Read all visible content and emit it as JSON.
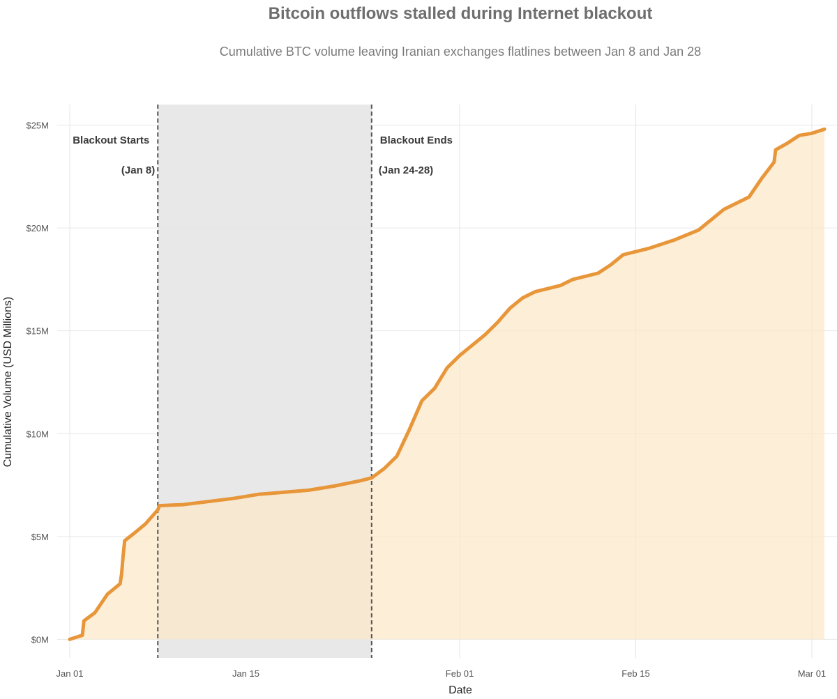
{
  "chart_data": {
    "type": "area",
    "title": "Bitcoin outflows stalled during Internet blackout",
    "subtitle": "Cumulative BTC volume leaving Iranian exchanges flatlines between Jan 8 and Jan 28",
    "xlabel": "Date",
    "ylabel": "Cumulative Volume (USD Millions)",
    "x_range": [
      "2025-12-31",
      "2026-03-03"
    ],
    "ylim": [
      -0.9,
      26
    ],
    "x_ticks": [
      {
        "date": "2026-01-01",
        "label": "Jan 01"
      },
      {
        "date": "2026-01-15",
        "label": "Jan 15"
      },
      {
        "date": "2026-02-01",
        "label": "Feb 01"
      },
      {
        "date": "2026-02-15",
        "label": "Feb 15"
      },
      {
        "date": "2026-03-01",
        "label": "Mar 01"
      }
    ],
    "y_ticks": [
      {
        "value": 0,
        "label": "$0M"
      },
      {
        "value": 5,
        "label": "$5M"
      },
      {
        "value": 10,
        "label": "$10M"
      },
      {
        "value": 15,
        "label": "$15M"
      },
      {
        "value": 20,
        "label": "$20M"
      },
      {
        "value": 25,
        "label": "$25M"
      }
    ],
    "grid": true,
    "colors": {
      "line": "#e8963a",
      "fill": "#fce8c9",
      "shade": "#e6e6e6",
      "grid": "#e6e6e6",
      "vline": "#555555"
    },
    "shaded_period": {
      "start": "2026-01-08",
      "end": "2026-01-25"
    },
    "annotations": [
      {
        "date": "2026-01-08",
        "line1": "Blackout Starts",
        "line2": "(Jan 8)",
        "side": "left"
      },
      {
        "date": "2026-01-25",
        "line1": "Blackout Ends",
        "line2": "(Jan 24-28)",
        "side": "right"
      }
    ],
    "series": [
      {
        "points": [
          [
            "2026-01-01",
            0.0
          ],
          [
            "2026-01-02",
            0.2
          ],
          [
            "2026-01-02",
            0.9
          ],
          [
            "2026-01-03",
            1.3
          ],
          [
            "2026-01-04",
            2.2
          ],
          [
            "2026-01-05",
            2.7
          ],
          [
            "2026-01-05",
            3.2
          ],
          [
            "2026-01-05",
            4.1
          ],
          [
            "2026-01-05",
            4.8
          ],
          [
            "2026-01-06",
            5.1
          ],
          [
            "2026-01-07",
            5.6
          ],
          [
            "2026-01-08",
            6.3
          ],
          [
            "2026-01-08",
            6.5
          ],
          [
            "2026-01-10",
            6.55
          ],
          [
            "2026-01-12",
            6.7
          ],
          [
            "2026-01-14",
            6.85
          ],
          [
            "2026-01-15",
            6.95
          ],
          [
            "2026-01-16",
            7.05
          ],
          [
            "2026-01-18",
            7.15
          ],
          [
            "2026-01-20",
            7.25
          ],
          [
            "2026-01-22",
            7.45
          ],
          [
            "2026-01-24",
            7.7
          ],
          [
            "2026-01-25",
            7.85
          ],
          [
            "2026-01-26",
            8.3
          ],
          [
            "2026-01-27",
            8.9
          ],
          [
            "2026-01-28",
            10.2
          ],
          [
            "2026-01-29",
            11.6
          ],
          [
            "2026-01-30",
            12.2
          ],
          [
            "2026-01-31",
            13.2
          ],
          [
            "2026-02-01",
            13.8
          ],
          [
            "2026-02-02",
            14.3
          ],
          [
            "2026-02-03",
            14.8
          ],
          [
            "2026-02-04",
            15.4
          ],
          [
            "2026-02-05",
            16.1
          ],
          [
            "2026-02-06",
            16.6
          ],
          [
            "2026-02-07",
            16.9
          ],
          [
            "2026-02-09",
            17.2
          ],
          [
            "2026-02-10",
            17.5
          ],
          [
            "2026-02-12",
            17.8
          ],
          [
            "2026-02-13",
            18.2
          ],
          [
            "2026-02-14",
            18.7
          ],
          [
            "2026-02-16",
            19.0
          ],
          [
            "2026-02-18",
            19.4
          ],
          [
            "2026-02-20",
            19.9
          ],
          [
            "2026-02-21",
            20.4
          ],
          [
            "2026-02-22",
            20.9
          ],
          [
            "2026-02-24",
            21.5
          ],
          [
            "2026-02-25",
            22.4
          ],
          [
            "2026-02-26",
            23.2
          ],
          [
            "2026-02-26",
            23.8
          ],
          [
            "2026-02-27",
            24.1
          ],
          [
            "2026-02-28",
            24.5
          ],
          [
            "2026-03-01",
            24.6
          ],
          [
            "2026-03-02",
            24.8
          ]
        ]
      }
    ]
  }
}
